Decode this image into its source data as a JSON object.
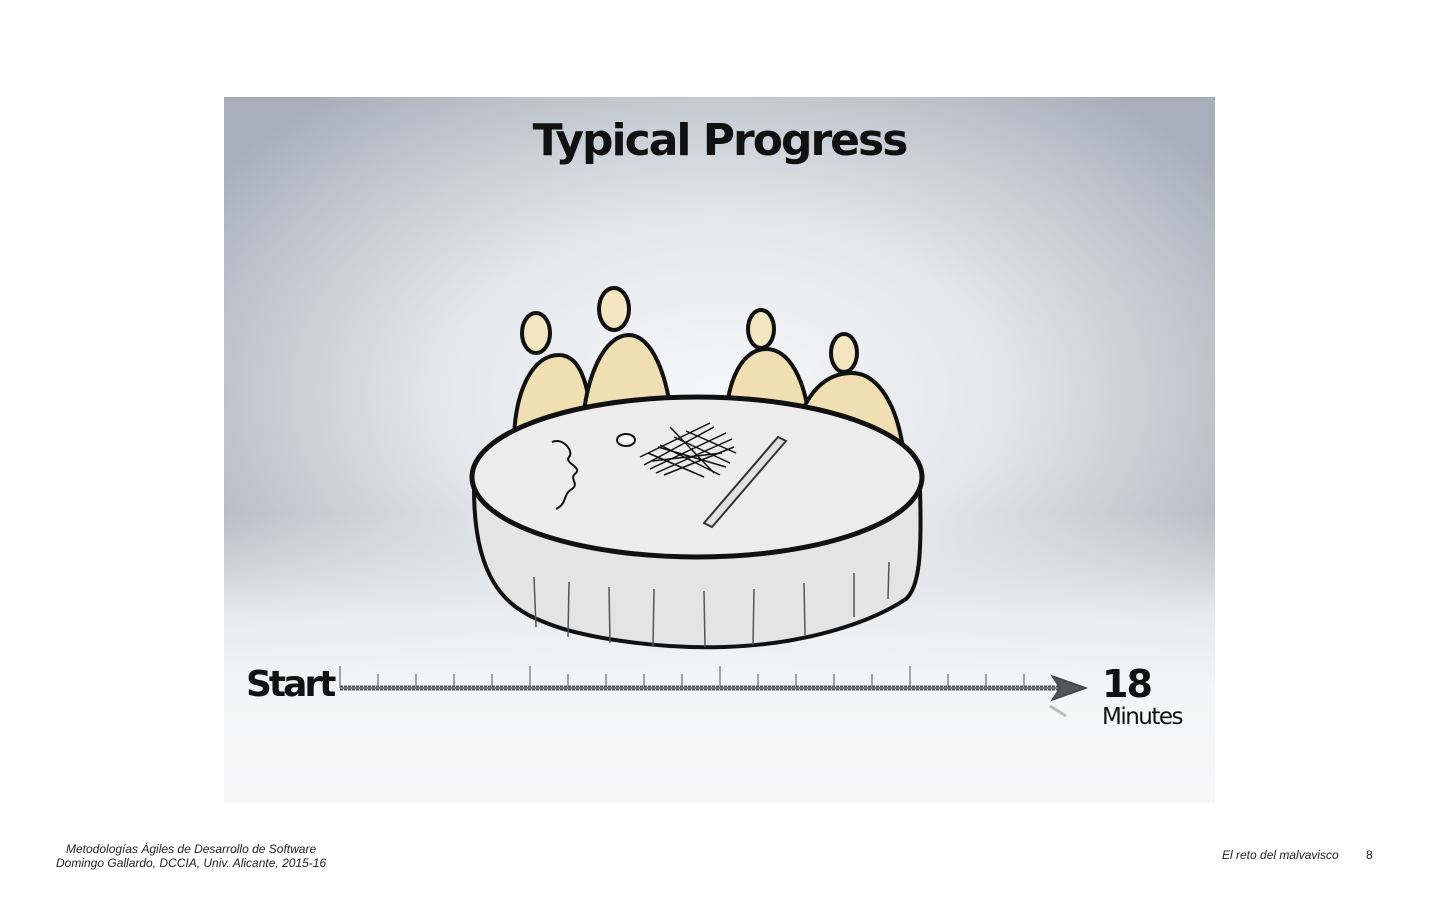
{
  "slide": {
    "title": "Typical Progress",
    "timeline": {
      "start_label": "Start",
      "end_value": "18",
      "end_unit": "Minutes"
    }
  },
  "footer": {
    "course": "Metodologías Ágiles de Desarrollo de Software",
    "author": "Domingo Gallardo, DCCIA, Univ. Alicante, 2015-16",
    "section": "El reto del malvavisco",
    "page_number": "8"
  },
  "colors": {
    "people_fill": "#efdfb2",
    "ink": "#111111",
    "table_fill": "#e9e9e9"
  },
  "icons": [
    "people-at-table-illustration",
    "timeline-arrow-icon"
  ]
}
